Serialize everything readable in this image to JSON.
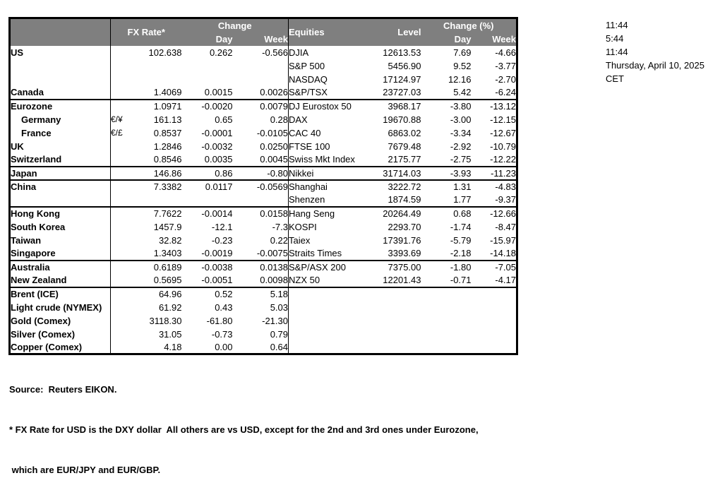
{
  "table": {
    "header": {
      "fx_rate": "FX Rate*",
      "change": "Change",
      "day": "Day",
      "week": "Week",
      "equities": "Equities",
      "level": "Level",
      "change_pct": "Change (%)",
      "day_pct": "Day",
      "week_pct": "Week"
    },
    "rows": [
      {
        "label": "US",
        "pair": "",
        "fx": "102.638",
        "fx_day": "0.262",
        "fx_week": "-0.566",
        "eq": "DJIA",
        "level": "12613.53",
        "eq_day": "7.69",
        "eq_week": "-4.66",
        "indent": false,
        "group_top": false
      },
      {
        "label": "",
        "pair": "",
        "fx": "",
        "fx_day": "",
        "fx_week": "",
        "eq": "S&P 500",
        "level": "5456.90",
        "eq_day": "9.52",
        "eq_week": "-3.77",
        "indent": false,
        "group_top": false
      },
      {
        "label": "",
        "pair": "",
        "fx": "",
        "fx_day": "",
        "fx_week": "",
        "eq": "NASDAQ",
        "level": "17124.97",
        "eq_day": "12.16",
        "eq_week": "-2.70",
        "indent": false,
        "group_top": false
      },
      {
        "label": "Canada",
        "pair": "",
        "fx": "1.4069",
        "fx_day": "0.0015",
        "fx_week": "0.0026",
        "eq": "S&P/TSX",
        "level": "23727.03",
        "eq_day": "5.42",
        "eq_week": "-6.24",
        "indent": false,
        "group_top": false
      },
      {
        "label": "Eurozone",
        "pair": "",
        "fx": "1.0971",
        "fx_day": "-0.0020",
        "fx_week": "0.0079",
        "eq": "DJ Eurostox 50",
        "level": "3968.17",
        "eq_day": "-3.80",
        "eq_week": "-13.12",
        "indent": false,
        "group_top": true
      },
      {
        "label": "Germany",
        "pair": "€/¥",
        "fx": "161.13",
        "fx_day": "0.65",
        "fx_week": "0.28",
        "eq": "DAX",
        "level": "19670.88",
        "eq_day": "-3.00",
        "eq_week": "-12.15",
        "indent": true,
        "group_top": false
      },
      {
        "label": "France",
        "pair": "€/£",
        "fx": "0.8537",
        "fx_day": "-0.0001",
        "fx_week": "-0.0105",
        "eq": "CAC 40",
        "level": "6863.02",
        "eq_day": "-3.34",
        "eq_week": "-12.67",
        "indent": true,
        "group_top": false
      },
      {
        "label": "UK",
        "pair": "",
        "fx": "1.2846",
        "fx_day": "-0.0032",
        "fx_week": "0.0250",
        "eq": "FTSE 100",
        "level": "7679.48",
        "eq_day": "-2.92",
        "eq_week": "-10.79",
        "indent": false,
        "group_top": false
      },
      {
        "label": "Switzerland",
        "pair": "",
        "fx": "0.8546",
        "fx_day": "0.0035",
        "fx_week": "0.0045",
        "eq": "Swiss Mkt Index",
        "level": "2175.77",
        "eq_day": "-2.75",
        "eq_week": "-12.22",
        "indent": false,
        "group_top": false
      },
      {
        "label": "Japan",
        "pair": "",
        "fx": "146.86",
        "fx_day": "0.86",
        "fx_week": "-0.80",
        "eq": "Nikkei",
        "level": "31714.03",
        "eq_day": "-3.93",
        "eq_week": "-11.23",
        "indent": false,
        "group_top": true
      },
      {
        "label": "China",
        "pair": "",
        "fx": "7.3382",
        "fx_day": "0.0117",
        "fx_week": "-0.0569",
        "eq": "Shanghai",
        "level": "3222.72",
        "eq_day": "1.31",
        "eq_week": "-4.83",
        "indent": false,
        "group_top": true
      },
      {
        "label": "",
        "pair": "",
        "fx": "",
        "fx_day": "",
        "fx_week": "",
        "eq": "Shenzen",
        "level": "1874.59",
        "eq_day": "1.77",
        "eq_week": "-9.37",
        "indent": false,
        "group_top": false
      },
      {
        "label": "Hong Kong",
        "pair": "",
        "fx": "7.7622",
        "fx_day": "-0.0014",
        "fx_week": "0.0158",
        "eq": "Hang Seng",
        "level": "20264.49",
        "eq_day": "0.68",
        "eq_week": "-12.66",
        "indent": false,
        "group_top": true
      },
      {
        "label": "South Korea",
        "pair": "",
        "fx": "1457.9",
        "fx_day": "-12.1",
        "fx_week": "-7.3",
        "eq": "KOSPI",
        "level": "2293.70",
        "eq_day": "-1.74",
        "eq_week": "-8.47",
        "indent": false,
        "group_top": false
      },
      {
        "label": "Taiwan",
        "pair": "",
        "fx": "32.82",
        "fx_day": "-0.23",
        "fx_week": "0.22",
        "eq": "Taiex",
        "level": "17391.76",
        "eq_day": "-5.79",
        "eq_week": "-15.97",
        "indent": false,
        "group_top": false
      },
      {
        "label": "Singapore",
        "pair": "",
        "fx": "1.3403",
        "fx_day": "-0.0019",
        "fx_week": "-0.0075",
        "eq": "Straits Times",
        "level": "3393.69",
        "eq_day": "-2.18",
        "eq_week": "-14.18",
        "indent": false,
        "group_top": false
      },
      {
        "label": "Australia",
        "pair": "",
        "fx": "0.6189",
        "fx_day": "-0.0038",
        "fx_week": "0.0138",
        "eq": "S&P/ASX  200",
        "level": "7375.00",
        "eq_day": "-1.80",
        "eq_week": "-7.05",
        "indent": false,
        "group_top": true
      },
      {
        "label": "New Zealand",
        "pair": "",
        "fx": "0.5695",
        "fx_day": "-0.0051",
        "fx_week": "0.0098",
        "eq": "NZX 50",
        "level": "12201.43",
        "eq_day": "-0.71",
        "eq_week": "-4.17",
        "indent": false,
        "group_top": false
      },
      {
        "label": "Brent (ICE)",
        "pair": "",
        "fx": "64.96",
        "fx_day": "0.52",
        "fx_week": "5.18",
        "eq": "",
        "level": "",
        "eq_day": "",
        "eq_week": "",
        "indent": false,
        "group_top": true
      },
      {
        "label": "Light crude (NYMEX)",
        "pair": "",
        "fx": "61.92",
        "fx_day": "0.43",
        "fx_week": "5.03",
        "eq": "",
        "level": "",
        "eq_day": "",
        "eq_week": "",
        "indent": false,
        "group_top": false
      },
      {
        "label": "Gold (Comex)",
        "pair": "",
        "fx": "3118.30",
        "fx_day": "-61.80",
        "fx_week": "-21.30",
        "eq": "",
        "level": "",
        "eq_day": "",
        "eq_week": "",
        "indent": false,
        "group_top": false
      },
      {
        "label": "Silver (Comex)",
        "pair": "",
        "fx": "31.05",
        "fx_day": "-0.73",
        "fx_week": "0.79",
        "eq": "",
        "level": "",
        "eq_day": "",
        "eq_week": "",
        "indent": false,
        "group_top": false
      },
      {
        "label": "Copper (Comex)",
        "pair": "",
        "fx": "4.18",
        "fx_day": "0.00",
        "fx_week": "0.64",
        "eq": "",
        "level": "",
        "eq_day": "",
        "eq_week": "",
        "indent": false,
        "group_top": false
      }
    ]
  },
  "timestamps": [
    "11:44",
    "5:44",
    "11:44",
    "Thursday, April 10, 2025",
    "CET"
  ],
  "footnotes": [
    "Source:  Reuters EIKON.",
    "* FX Rate for USD is the DXY dollar  All others are vs USD, except for the 2nd and 3rd ones under Eurozone,",
    " which are EUR/JPY and EUR/GBP."
  ],
  "colors": {
    "header_bg": "#7f7f7f",
    "header_text": "#ffffff",
    "body_text": "#000000",
    "border": "#000000"
  }
}
